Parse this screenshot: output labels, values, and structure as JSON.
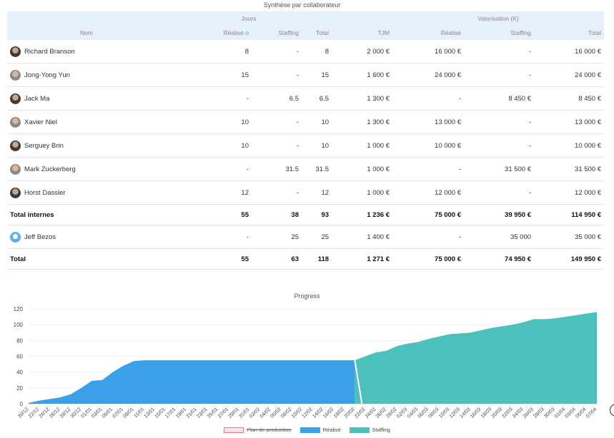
{
  "table": {
    "title": "Synthèse par collaborateur",
    "group_headers": {
      "jours": "Jours",
      "valorisation": "Valorisation (K)"
    },
    "headers": {
      "nom": "Nom",
      "realise_j": "Réalisé",
      "staffing_j": "Staffing",
      "total_j": "Total",
      "tjm": "TJM",
      "realise_v": "Réalisé",
      "staffing_v": "Staffing",
      "total_v": "Total"
    },
    "rows": [
      {
        "name": "Richard Branson",
        "rj": "8",
        "sj": "-",
        "tj": "8",
        "tjm": "2 000 €",
        "rv": "16 000 €",
        "sv": "-",
        "tv": "16 000 €"
      },
      {
        "name": "Jong-Yong Yun",
        "rj": "15",
        "sj": "-",
        "tj": "15",
        "tjm": "1 600 €",
        "rv": "24 000 €",
        "sv": "-",
        "tv": "24 000 €"
      },
      {
        "name": "Jack Ma",
        "rj": "-",
        "sj": "6.5",
        "tj": "6.5",
        "tjm": "1 300 €",
        "rv": "-",
        "sv": "8 450 €",
        "tv": "8 450 €"
      },
      {
        "name": "Xavier Niel",
        "rj": "10",
        "sj": "-",
        "tj": "10",
        "tjm": "1 300 €",
        "rv": "13 000 €",
        "sv": "-",
        "tv": "13 000 €"
      },
      {
        "name": "Serguey Brin",
        "rj": "10",
        "sj": "-",
        "tj": "10",
        "tjm": "1 000 €",
        "rv": "10 000 €",
        "sv": "-",
        "tv": "10 000 €"
      },
      {
        "name": "Mark Zuckerberg",
        "rj": "-",
        "sj": "31.5",
        "tj": "31.5",
        "tjm": "1 000 €",
        "rv": "-",
        "sv": "31 500 €",
        "tv": "31 500 €"
      },
      {
        "name": "Horst Dassler",
        "rj": "12",
        "sj": "-",
        "tj": "12",
        "tjm": "1 000 €",
        "rv": "12 000 €",
        "sv": "-",
        "tv": "12 000 €"
      }
    ],
    "total_internes": {
      "label": "Total internes",
      "rj": "55",
      "sj": "38",
      "tj": "93",
      "tjm": "1 236 €",
      "rv": "75 000 €",
      "sv": "39 950 €",
      "tv": "114 950 €"
    },
    "external_row": {
      "name": "Jeff Bezos",
      "rj": "-",
      "sj": "25",
      "tj": "25",
      "tjm": "1 400 €",
      "rv": "-",
      "sv": "35 000",
      "tv": "35 000 €"
    },
    "total": {
      "label": "Total",
      "rj": "55",
      "sj": "63",
      "tj": "118",
      "tjm": "1 271 €",
      "rv": "75 000 €",
      "sv": "74 950 €",
      "tv": "149 950 €"
    }
  },
  "chart_data": {
    "type": "area",
    "title": "Progress",
    "ylim": [
      0,
      120
    ],
    "yticks": [
      0,
      20,
      40,
      60,
      80,
      100,
      120
    ],
    "x": [
      "20/12",
      "22/12",
      "24/12",
      "26/12",
      "28/12",
      "30/12",
      "01/01",
      "03/01",
      "05/01",
      "07/01",
      "09/01",
      "11/01",
      "13/01",
      "15/01",
      "17/01",
      "19/01",
      "21/01",
      "23/01",
      "25/01",
      "27/01",
      "29/01",
      "31/01",
      "02/02",
      "04/02",
      "06/02",
      "08/02",
      "10/02",
      "12/02",
      "14/02",
      "16/02",
      "18/02",
      "20/02",
      "22/02",
      "24/02",
      "26/02",
      "28/02",
      "02/03",
      "04/03",
      "06/03",
      "08/03",
      "10/03",
      "12/03",
      "14/03",
      "16/03",
      "18/03",
      "20/03",
      "22/03",
      "24/03",
      "26/03",
      "28/03",
      "30/03",
      "01/04",
      "03/04",
      "05/04",
      "07/04"
    ],
    "series": [
      {
        "name": "Réalisé",
        "color": "#3aa0e8",
        "values": [
          1,
          4,
          6,
          8,
          12,
          20,
          29,
          30,
          40,
          48,
          54,
          55,
          55,
          55,
          55,
          55,
          55,
          55,
          55,
          55,
          55,
          55,
          55,
          55,
          55,
          55,
          55,
          55,
          55,
          55,
          55,
          55,
          null,
          null,
          null,
          null,
          null,
          null,
          null,
          null,
          null,
          null,
          null,
          null,
          null,
          null,
          null,
          null,
          null,
          null,
          null,
          null,
          null,
          null,
          null
        ]
      },
      {
        "name": "Staffing",
        "color": "#4cc0bd",
        "values": [
          null,
          null,
          null,
          null,
          null,
          null,
          null,
          null,
          null,
          null,
          null,
          null,
          null,
          null,
          null,
          null,
          null,
          null,
          null,
          null,
          null,
          null,
          null,
          null,
          null,
          null,
          null,
          null,
          null,
          null,
          null,
          55,
          60,
          65,
          67,
          73,
          76,
          78,
          82,
          85,
          88,
          89,
          90,
          93,
          96,
          98,
          100,
          103,
          107,
          107,
          108,
          110,
          112,
          114,
          116
        ]
      }
    ],
    "legend": [
      {
        "label": "Plan de production",
        "style": "hollow",
        "hidden": true
      },
      {
        "label": "Réalisé",
        "color": "#3aa0e8"
      },
      {
        "label": "Staffing",
        "color": "#4cc0bd"
      }
    ]
  }
}
